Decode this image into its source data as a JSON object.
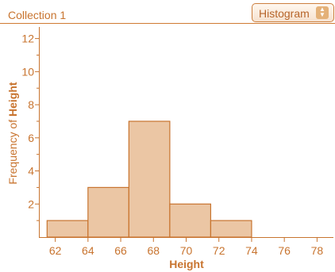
{
  "header": {
    "collection_title": "Collection 1",
    "plot_type_select": "Histogram",
    "stepper_icon": "up-down-arrows-icon"
  },
  "colors": {
    "accent": "#c8742f",
    "bar_fill": "#ebc6a4",
    "bar_stroke": "#c8742f"
  },
  "chart_data": {
    "type": "bar",
    "xlabel": "Height",
    "ylabel_prefix": "Frequency of ",
    "ylabel_attr": "Height",
    "bin_width": 2.5,
    "bins": [
      {
        "start": 61.5,
        "end": 64,
        "count": 1
      },
      {
        "start": 64,
        "end": 66.5,
        "count": 3
      },
      {
        "start": 66.5,
        "end": 69,
        "count": 7
      },
      {
        "start": 69,
        "end": 71.5,
        "count": 2
      },
      {
        "start": 71.5,
        "end": 74,
        "count": 1
      }
    ],
    "xlim": [
      61,
      79
    ],
    "ylim": [
      0,
      12.7
    ],
    "x_ticks": [
      "62",
      "64",
      "66",
      "68",
      "70",
      "72",
      "74",
      "76",
      "78"
    ],
    "y_ticks": [
      "2",
      "4",
      "6",
      "8",
      "10",
      "12"
    ]
  }
}
